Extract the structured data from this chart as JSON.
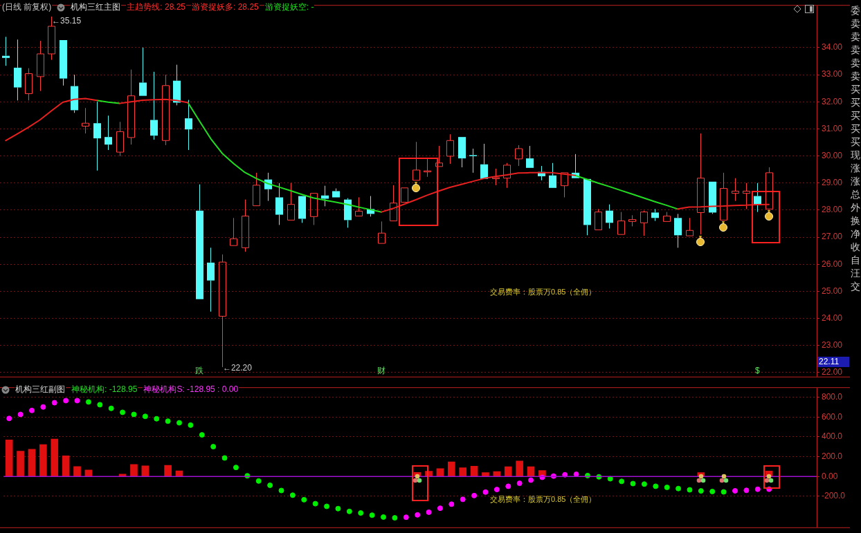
{
  "chart_data": [
    {
      "type": "candlestick",
      "title": "机构三红主图",
      "subtitle": "(日线 前复权)",
      "categories": [
        null,
        null,
        null,
        null,
        null,
        null,
        null,
        null,
        null,
        null,
        null,
        null,
        null,
        null,
        null,
        null,
        null,
        "跌",
        null,
        null,
        null,
        null,
        null,
        null,
        null,
        null,
        null,
        null,
        null,
        null,
        null,
        null,
        null,
        "财",
        null,
        null,
        null,
        null,
        null,
        null,
        null,
        null,
        null,
        null,
        null,
        null,
        null,
        null,
        null,
        null,
        null,
        null,
        null,
        null,
        null,
        null,
        null,
        null,
        null,
        null,
        null,
        null,
        null,
        null,
        null,
        null,
        "$",
        null
      ],
      "ohlc": [
        [
          33.7,
          34.4,
          33.33,
          33.62
        ],
        [
          33.26,
          34.3,
          32.05,
          32.53
        ],
        [
          32.3,
          33.24,
          32.05,
          33.04
        ],
        [
          32.93,
          34.25,
          32.4,
          33.77
        ],
        [
          33.77,
          35.15,
          33.55,
          34.79
        ],
        [
          34.28,
          34.28,
          32.6,
          32.86
        ],
        [
          32.58,
          33.0,
          31.59,
          31.69
        ],
        [
          31.1,
          31.77,
          30.83,
          31.21
        ],
        [
          31.21,
          32.0,
          29.46,
          30.65
        ],
        [
          30.7,
          31.49,
          30.22,
          30.42
        ],
        [
          30.14,
          31.26,
          29.99,
          30.9
        ],
        [
          30.68,
          33.19,
          30.42,
          32.22
        ],
        [
          32.71,
          34.0,
          32.22,
          32.22
        ],
        [
          31.33,
          33.11,
          30.6,
          30.75
        ],
        [
          30.57,
          33.0,
          30.4,
          32.6
        ],
        [
          32.78,
          33.37,
          31.87,
          31.97
        ],
        [
          31.39,
          32.07,
          30.22,
          30.98
        ],
        [
          27.98,
          28.95,
          24.71,
          24.71
        ],
        [
          26.06,
          26.61,
          24.25,
          25.4
        ],
        [
          24.08,
          26.36,
          22.2,
          26.08
        ],
        [
          26.69,
          27.71,
          26.69,
          26.94
        ],
        [
          26.61,
          28.39,
          26.46,
          27.78
        ],
        [
          28.16,
          29.38,
          28.16,
          28.92
        ],
        [
          29.13,
          29.38,
          28.34,
          28.77
        ],
        [
          28.47,
          29.0,
          27.45,
          27.83
        ],
        [
          27.63,
          29.0,
          27.63,
          28.21
        ],
        [
          28.52,
          28.52,
          27.53,
          27.68
        ],
        [
          27.76,
          28.62,
          27.45,
          28.62
        ],
        [
          28.54,
          28.9,
          28.14,
          28.42
        ],
        [
          28.7,
          28.8,
          28.47,
          28.47
        ],
        [
          28.39,
          28.44,
          27.35,
          27.63
        ],
        [
          27.78,
          28.47,
          27.78,
          27.96
        ],
        [
          28.04,
          28.52,
          27.76,
          27.86
        ],
        [
          26.77,
          27.58,
          26.77,
          27.15
        ],
        [
          27.6,
          28.92,
          27.6,
          28.26
        ],
        [
          28.29,
          28.82,
          28.29,
          28.82
        ],
        [
          29.1,
          30.52,
          29.1,
          29.48
        ],
        [
          29.41,
          29.89,
          29.23,
          29.45
        ],
        [
          29.61,
          30.37,
          29.61,
          29.74
        ],
        [
          29.99,
          30.8,
          29.71,
          30.57
        ],
        [
          30.7,
          30.7,
          29.58,
          29.91
        ],
        [
          30.03,
          30.27,
          29.38,
          30.0
        ],
        [
          29.69,
          30.45,
          29.15,
          29.15
        ],
        [
          29.16,
          29.53,
          28.92,
          29.2
        ],
        [
          29.18,
          29.74,
          28.82,
          29.66
        ],
        [
          29.89,
          30.4,
          29.63,
          30.27
        ],
        [
          29.91,
          30.37,
          29.56,
          29.56
        ],
        [
          29.41,
          29.63,
          29.1,
          29.25
        ],
        [
          29.28,
          29.74,
          28.82,
          28.82
        ],
        [
          28.9,
          29.38,
          28.47,
          29.38
        ],
        [
          29.38,
          30.07,
          29.18,
          29.18
        ],
        [
          29.15,
          29.15,
          27.07,
          27.45
        ],
        [
          27.27,
          28.04,
          27.27,
          27.93
        ],
        [
          27.98,
          28.21,
          27.32,
          27.53
        ],
        [
          27.1,
          27.93,
          27.1,
          27.6
        ],
        [
          27.58,
          27.81,
          27.4,
          27.65
        ],
        [
          27.53,
          27.98,
          27.05,
          27.93
        ],
        [
          27.91,
          28.04,
          27.6,
          27.71
        ],
        [
          27.58,
          27.93,
          27.58,
          27.78
        ],
        [
          27.71,
          27.86,
          26.61,
          27.07
        ],
        [
          27.05,
          27.71,
          27.05,
          27.25
        ],
        [
          27.91,
          30.83,
          27.1,
          29.18
        ],
        [
          29.05,
          29.05,
          27.86,
          27.91
        ],
        [
          27.63,
          29.38,
          27.63,
          28.8
        ],
        [
          28.62,
          29.18,
          28.34,
          28.7
        ],
        [
          28.62,
          29.0,
          28.04,
          28.7
        ],
        [
          28.52,
          29.0,
          27.93,
          28.21
        ],
        [
          28.04,
          29.58,
          28.04,
          29.38
        ]
      ],
      "colors": [
        "#54fcfc",
        "#54fcfc",
        "#ff3c3c",
        "#ff3c3c",
        "#ff3c3c",
        "#54fcfc",
        "#54fcfc",
        "#ff3c3c",
        "#54fcfc",
        "#54fcfc",
        "#ff3c3c",
        "#ff3c3c",
        "#54fcfc",
        "#54fcfc",
        "#ff3c3c",
        "#54fcfc",
        "#54fcfc",
        "#54fcfc",
        "#54fcfc",
        "#ff3c3c",
        "#ff3c3c",
        "#ff3c3c",
        "#ff3c3c",
        "#54fcfc",
        "#54fcfc",
        "#ff3c3c",
        "#54fcfc",
        "#ff3c3c",
        "#54fcfc",
        "#54fcfc",
        "#54fcfc",
        "#ff3c3c",
        "#54fcfc",
        "#ff3c3c",
        "#ff3c3c",
        "#ff3c3c",
        "#ff3c3c",
        "#ff3c3c",
        "#ff3c3c",
        "#ff3c3c",
        "#54fcfc",
        "#54fcfc",
        "#54fcfc",
        "#ff3c3c",
        "#ff3c3c",
        "#ff3c3c",
        "#54fcfc",
        "#54fcfc",
        "#54fcfc",
        "#ff3c3c",
        "#54fcfc",
        "#54fcfc",
        "#ff3c3c",
        "#54fcfc",
        "#ff3c3c",
        "#ff3c3c",
        "#ff3c3c",
        "#54fcfc",
        "#ff3c3c",
        "#54fcfc",
        "#ff3c3c",
        "#ff3c3c",
        "#54fcfc",
        "#ff3c3c",
        "#ff3c3c",
        "#ff3c3c",
        "#54fcfc",
        "#ff3c3c"
      ],
      "series": [
        {
          "type": "line",
          "color": "#e82020",
          "values": [
            30.57,
            30.81,
            31.06,
            31.33,
            31.66,
            31.98,
            32.09,
            32.12,
            32.05,
            null,
            31.94,
            32.0,
            32.06,
            32.08,
            32.09,
            32.05,
            31.97,
            null,
            null,
            null,
            null,
            null,
            null,
            null,
            null,
            null,
            null,
            null,
            null,
            null,
            null,
            null,
            null,
            27.93,
            28.06,
            28.22,
            28.38,
            28.55,
            28.7,
            28.84,
            28.95,
            29.06,
            29.17,
            29.24,
            29.3,
            29.37,
            29.38,
            29.38,
            29.38,
            29.33,
            29.28,
            null,
            null,
            null,
            null,
            null,
            null,
            null,
            null,
            28.04,
            28.11,
            28.12,
            28.14,
            28.15,
            28.17,
            28.18,
            28.2,
            28.21
          ]
        },
        {
          "type": "line",
          "color": "#22dd22",
          "values": [
            null,
            null,
            null,
            null,
            null,
            null,
            null,
            null,
            32.05,
            31.99,
            31.94,
            null,
            null,
            null,
            null,
            null,
            31.97,
            31.3,
            30.64,
            30.1,
            29.72,
            29.39,
            29.17,
            28.98,
            28.85,
            28.72,
            28.58,
            28.45,
            28.37,
            28.29,
            28.21,
            28.11,
            28.02,
            27.93,
            null,
            null,
            null,
            null,
            null,
            null,
            null,
            null,
            null,
            null,
            null,
            null,
            null,
            null,
            null,
            null,
            29.28,
            29.14,
            29.0,
            28.87,
            28.73,
            28.59,
            28.45,
            28.31,
            28.18,
            28.04,
            null,
            null,
            null,
            null,
            null,
            null,
            null,
            null
          ]
        }
      ],
      "ylim": [
        21.9,
        35.5
      ],
      "yticks": [
        {
          "value": 22,
          "label": "22.00"
        },
        {
          "value": 23,
          "label": "23.00"
        },
        {
          "value": 24,
          "label": "24.00"
        },
        {
          "value": 25,
          "label": "25.00"
        },
        {
          "value": 26,
          "label": "26.00"
        },
        {
          "value": 27,
          "label": "27.00"
        },
        {
          "value": 28,
          "label": "28.00"
        },
        {
          "value": 29,
          "label": "29.00"
        },
        {
          "value": 30,
          "label": "30.00"
        },
        {
          "value": 31,
          "label": "31.00"
        },
        {
          "value": 32,
          "label": "32.00"
        },
        {
          "value": 33,
          "label": "33.00"
        },
        {
          "value": 34,
          "label": "34.00"
        }
      ],
      "grid": "y",
      "annotations": [
        "主趋势线: 28.25",
        "游资捉妖多: 28.25",
        "游资捉妖空: -",
        "←35.15",
        "←22.20",
        "交易费率：股票万0.85（全佣）",
        "22.11",
        "委卖卖卖卖卖买买买买买现涨涨总外换净收自汪交"
      ]
    },
    {
      "type": "bar",
      "title": "机构三红副图",
      "categories": [
        null,
        null,
        null,
        null,
        null,
        null,
        null,
        null,
        null,
        null,
        null,
        null,
        null,
        null,
        null,
        null,
        null,
        null,
        null,
        null,
        null,
        null,
        null,
        null,
        null,
        null,
        null,
        null,
        null,
        null,
        null,
        null,
        null,
        null,
        null,
        null,
        null,
        null,
        null,
        null,
        null,
        null,
        null,
        null,
        null,
        null,
        null,
        null,
        null,
        null,
        null,
        null,
        null,
        null,
        null,
        null,
        null,
        null,
        null,
        null,
        null,
        null,
        null,
        null,
        null,
        null,
        null,
        null
      ],
      "series": [
        {
          "type": "bar",
          "color": "#e01010",
          "values": [
            369,
            256,
            275,
            323,
            378,
            209,
            101,
            66,
            null,
            null,
            24,
            121,
            108,
            null,
            113,
            57,
            null,
            null,
            null,
            null,
            null,
            null,
            null,
            null,
            null,
            null,
            null,
            null,
            null,
            null,
            null,
            null,
            null,
            null,
            null,
            null,
            41,
            54,
            79,
            147,
            88,
            104,
            39,
            50,
            98,
            156,
            98,
            61,
            null,
            null,
            null,
            null,
            null,
            null,
            null,
            null,
            null,
            null,
            null,
            null,
            null,
            40,
            null,
            null,
            null,
            null,
            null,
            55
          ]
        },
        {
          "type": "scatter",
          "color": "#00ee00",
          "values": [
            null,
            null,
            null,
            null,
            null,
            null,
            null,
            753,
            725,
            688,
            648,
            627,
            607,
            583,
            559,
            542,
            519,
            420,
            301,
            187,
            91,
            7,
            -46,
            -89,
            -142,
            -189,
            -235,
            -275,
            -302,
            -325,
            -353,
            -369,
            -391,
            -410,
            -418,
            null,
            null,
            null,
            null,
            null,
            null,
            null,
            null,
            null,
            null,
            null,
            null,
            null,
            null,
            null,
            null,
            9,
            -4,
            -23,
            -50,
            -72,
            -77,
            -99,
            -110,
            -122,
            -135,
            -146,
            -152,
            -156,
            null,
            null,
            null,
            null
          ]
        },
        {
          "type": "scatter",
          "color": "#ff00ff",
          "values": [
            586,
            627,
            667,
            702,
            745,
            766,
            766,
            null,
            null,
            null,
            null,
            null,
            null,
            null,
            null,
            null,
            null,
            null,
            null,
            null,
            null,
            null,
            null,
            null,
            null,
            null,
            null,
            null,
            null,
            null,
            null,
            null,
            null,
            null,
            null,
            -412,
            -388,
            -361,
            -321,
            -280,
            -231,
            -193,
            -158,
            -132,
            -99,
            -69,
            -37,
            -9,
            4,
            17,
            22,
            null,
            null,
            null,
            null,
            null,
            null,
            null,
            null,
            null,
            null,
            null,
            null,
            null,
            -145,
            -140,
            -129,
            -129
          ]
        }
      ],
      "marker": "circle",
      "ylim": [
        -500,
        880
      ],
      "yticks": [
        {
          "value": 800,
          "label": "800.0"
        },
        {
          "value": 600,
          "label": "600.0"
        },
        {
          "value": 400,
          "label": "400.0"
        },
        {
          "value": 200,
          "label": "200.0"
        },
        {
          "value": 0,
          "label": "0.00"
        },
        {
          "value": -200,
          "label": "-200.0"
        }
      ],
      "grid": "y",
      "ref_lines": [
        {
          "axis": "y",
          "value": 0,
          "color": "#a010d0"
        }
      ],
      "annotations": [
        "神秘机构: -128.95",
        "神秘机构S: -128.95 : 0.00",
        "交易费率：股票万0.85（全佣）"
      ]
    }
  ]
}
